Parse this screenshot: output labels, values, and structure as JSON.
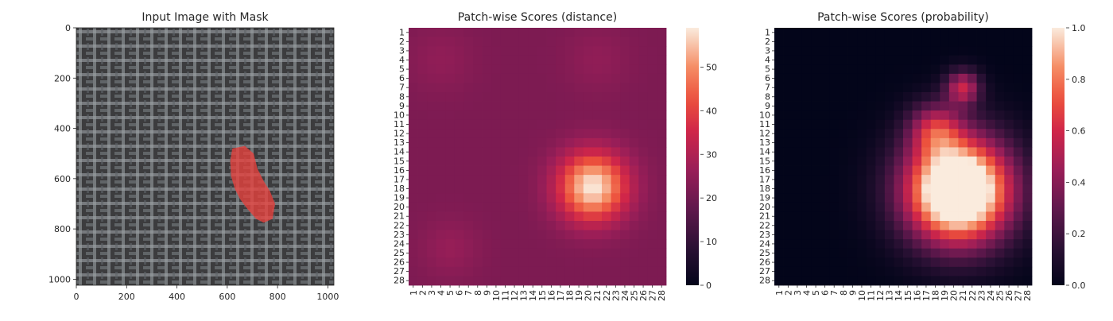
{
  "chart_data": [
    {
      "type": "image",
      "title": "Input Image with Mask",
      "xticks": [
        0,
        200,
        400,
        600,
        800,
        1000
      ],
      "yticks": [
        0,
        200,
        400,
        600,
        800,
        1000
      ],
      "xlim": [
        0,
        1024
      ],
      "ylim": [
        1024,
        0
      ],
      "mask": {
        "color": "#e8413d",
        "points": [
          [
            620,
            480
          ],
          [
            670,
            470
          ],
          [
            705,
            500
          ],
          [
            720,
            560
          ],
          [
            745,
            610
          ],
          [
            770,
            650
          ],
          [
            790,
            700
          ],
          [
            780,
            760
          ],
          [
            745,
            775
          ],
          [
            715,
            760
          ],
          [
            680,
            720
          ],
          [
            650,
            680
          ],
          [
            630,
            640
          ],
          [
            615,
            590
          ],
          [
            612,
            530
          ]
        ]
      }
    },
    {
      "type": "heatmap",
      "title": "Patch-wise Scores (distance)",
      "labels": [
        "1",
        "2",
        "3",
        "4",
        "5",
        "6",
        "7",
        "8",
        "9",
        "10",
        "11",
        "12",
        "13",
        "14",
        "15",
        "16",
        "17",
        "18",
        "19",
        "20",
        "21",
        "22",
        "23",
        "24",
        "25",
        "26",
        "27",
        "28"
      ],
      "colorbar": {
        "min": 0,
        "max": 59,
        "ticks": [
          0,
          10,
          20,
          30,
          40,
          50
        ]
      },
      "model": {
        "base": 22,
        "blobs": [
          {
            "center": [
              20.5,
              17.8
            ],
            "sigma": 2.6,
            "amp": 37
          },
          {
            "center": [
              5,
              24.5
            ],
            "sigma": 2.2,
            "amp": 4
          },
          {
            "center": [
              4,
              4
            ],
            "sigma": 2.5,
            "amp": 3
          },
          {
            "center": [
              21,
              4
            ],
            "sigma": 2.5,
            "amp": 3
          }
        ]
      }
    },
    {
      "type": "heatmap",
      "title": "Patch-wise Scores (probability)",
      "labels": [
        "1",
        "2",
        "3",
        "4",
        "5",
        "6",
        "7",
        "8",
        "9",
        "10",
        "11",
        "12",
        "13",
        "14",
        "15",
        "16",
        "17",
        "18",
        "19",
        "20",
        "21",
        "22",
        "23",
        "24",
        "25",
        "26",
        "27",
        "28"
      ],
      "colorbar": {
        "min": 0,
        "max": 1,
        "ticks": [
          "0.0",
          "0.2",
          "0.4",
          "0.6",
          "0.8",
          "1.0"
        ]
      },
      "model": {
        "base": 0,
        "blobs": [
          {
            "center": [
              20.5,
              18.2
            ],
            "sigma": 4.0,
            "amp": 1.45
          },
          {
            "center": [
              21,
              7
            ],
            "sigma": 1.3,
            "amp": 0.55
          },
          {
            "center": [
              18,
              11.5
            ],
            "sigma": 2.0,
            "amp": 0.45
          }
        ]
      }
    }
  ]
}
